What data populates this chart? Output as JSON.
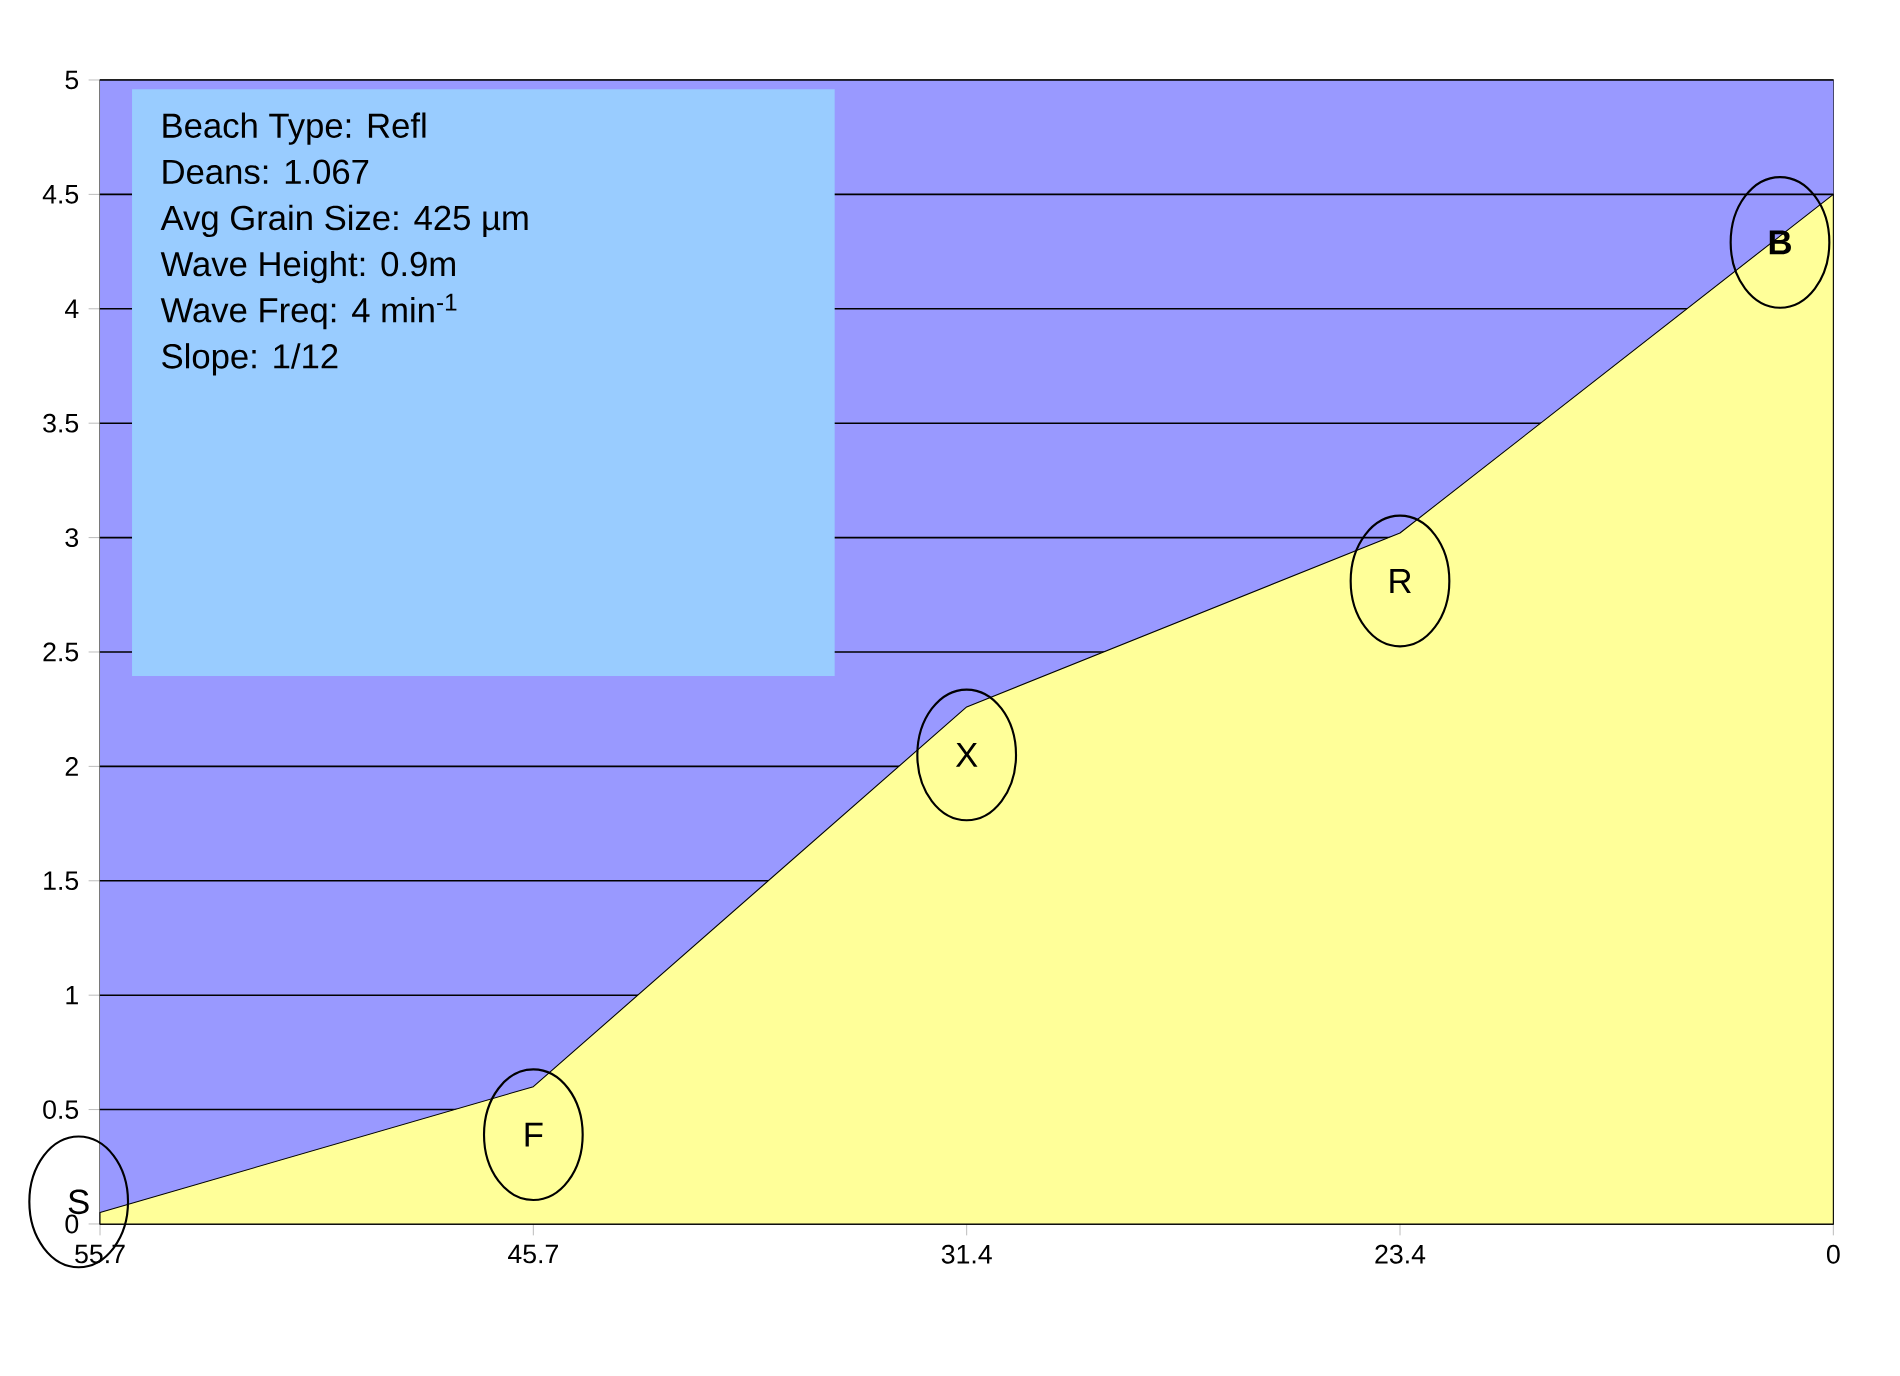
{
  "chart_data": {
    "type": "area",
    "categories": [
      "55.7",
      "45.7",
      "31.4",
      "23.4",
      "0"
    ],
    "values": [
      0.05,
      0.6,
      2.26,
      3.02,
      4.5
    ],
    "color": "#ffff99",
    "ylim": [
      0,
      5
    ],
    "yticks": [
      0,
      0.5,
      1,
      1.5,
      2,
      2.5,
      3,
      3.5,
      4,
      4.5,
      5
    ],
    "grid": "y",
    "bands": [
      {
        "axis": "y",
        "from": 0,
        "to": 5,
        "color": "#9999ff"
      }
    ],
    "annotations": [
      "Beach Type: Refl",
      "Deans: 1.067",
      "Avg Grain Size: 425 µm",
      "Wave Height: 0.9m",
      "Wave Freq: 4 min$^{-1}$",
      "Slope: 1/12",
      {
        "text": "S",
        "x": "55.7",
        "y": 0.05
      },
      {
        "text": "F",
        "x": "45.7",
        "y": 0.6
      },
      {
        "text": "X",
        "x": "31.4",
        "y": 2.26
      },
      {
        "text": "R",
        "x": "23.4",
        "y": 3.02
      },
      {
        "text": "**B**",
        "x": "0",
        "y": 4.5
      }
    ]
  }
}
